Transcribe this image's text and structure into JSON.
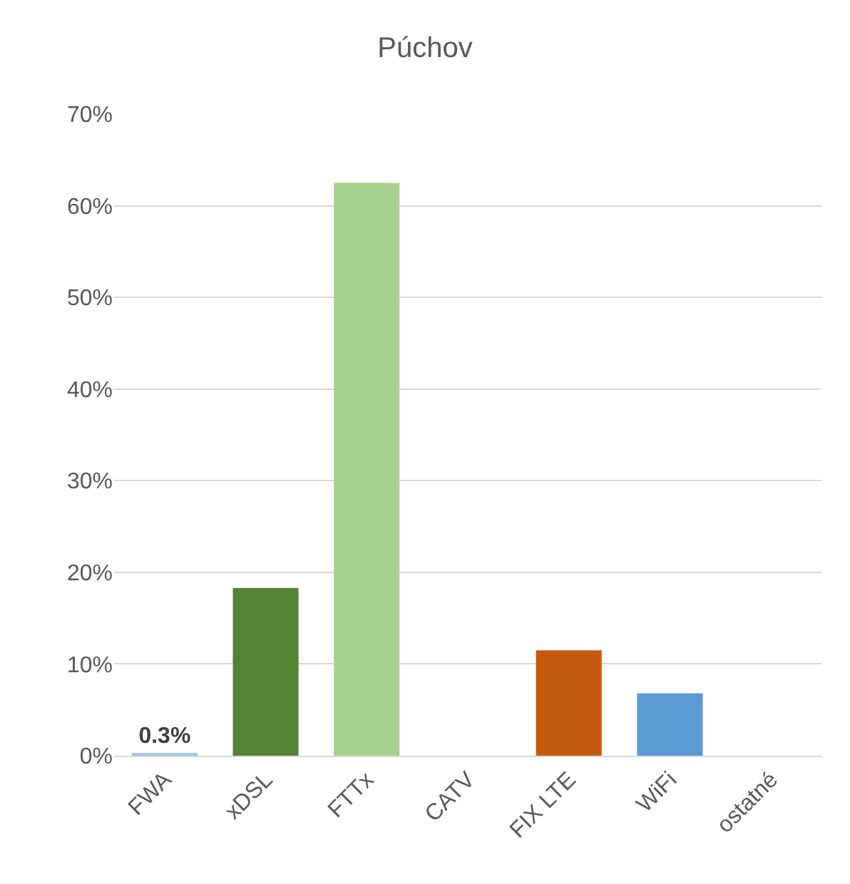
{
  "chart_data": {
    "type": "bar",
    "title": "Púchov",
    "categories": [
      "FWA",
      "xDSL",
      "FTTx",
      "CATV",
      "FIX LTE",
      "WiFi",
      "ostatné"
    ],
    "values": [
      0.3,
      18.3,
      62.5,
      0,
      11.5,
      6.8,
      0
    ],
    "colors": [
      "#9dc3e6",
      "#548235",
      "#a9d18e",
      "#7f7f7f",
      "#c55a11",
      "#5b9bd5",
      "#a5a5a5"
    ],
    "value_labels": [
      "0.3%",
      null,
      null,
      null,
      null,
      null,
      null
    ],
    "ylim": [
      0,
      70
    ],
    "yticks": [
      {
        "value": 0,
        "label": "0%"
      },
      {
        "value": 10,
        "label": "10%"
      },
      {
        "value": 20,
        "label": "20%"
      },
      {
        "value": 30,
        "label": "30%"
      },
      {
        "value": 40,
        "label": "40%"
      },
      {
        "value": 50,
        "label": "50%"
      },
      {
        "value": 60,
        "label": "60%"
      },
      {
        "value": 70,
        "label": "70%"
      }
    ],
    "grid": "y"
  }
}
